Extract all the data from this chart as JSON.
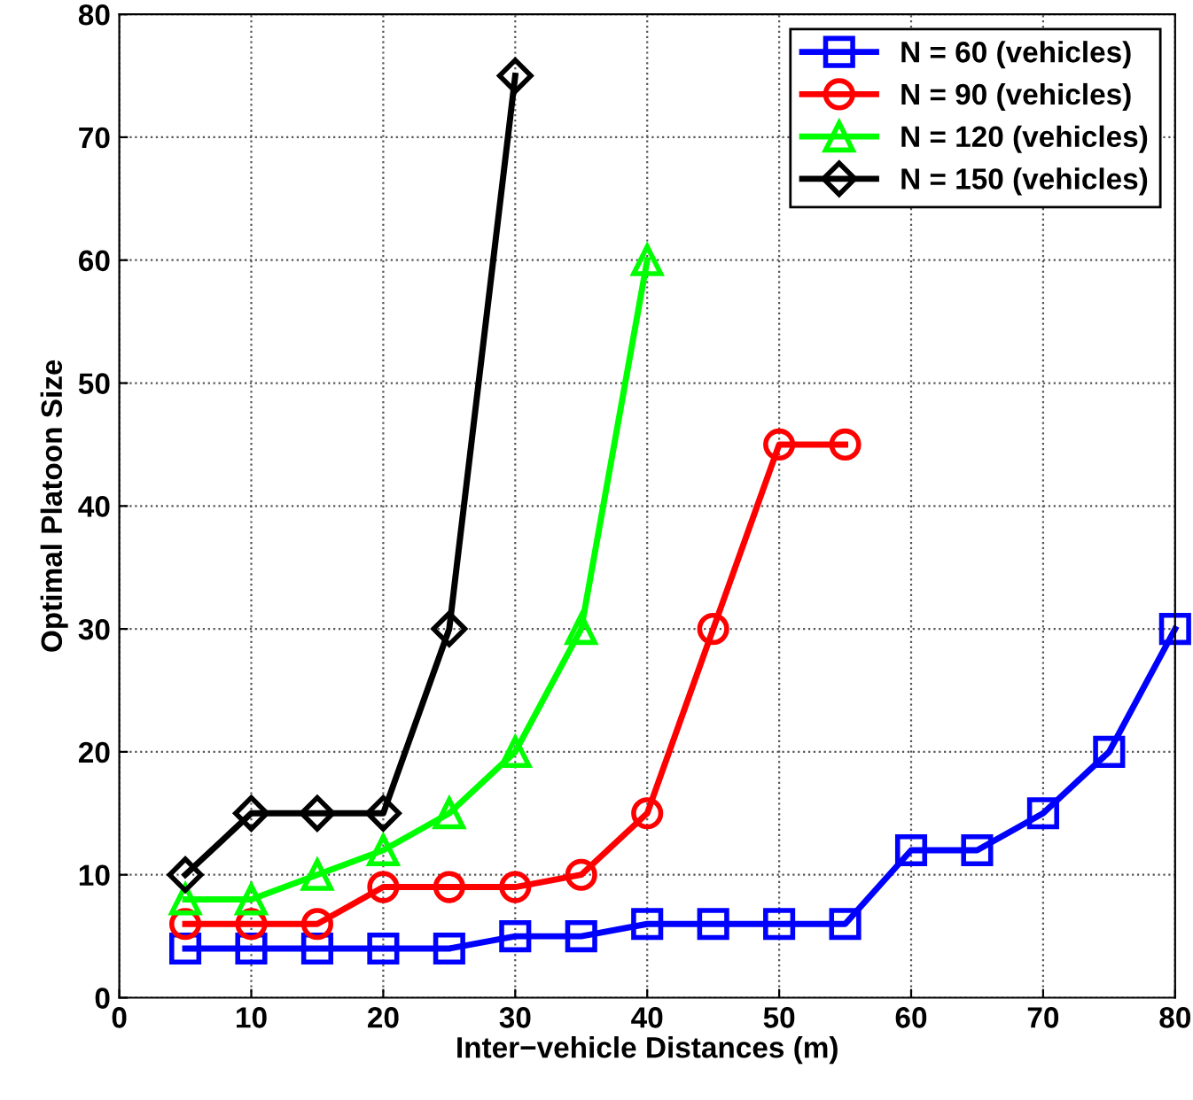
{
  "chart_data": {
    "type": "line",
    "xlabel": "Inter−vehicle Distances (m)",
    "ylabel": "Optimal Platoon Size",
    "xlim": [
      0,
      80
    ],
    "xticks": [
      0,
      10,
      20,
      30,
      40,
      50,
      60,
      70,
      80
    ],
    "ylim": [
      0,
      80
    ],
    "yticks": [
      0,
      10,
      20,
      30,
      40,
      50,
      60,
      70,
      80
    ],
    "grid": true,
    "legend": "top right",
    "line_style": "solid",
    "series": [
      {
        "name": "N = 60 (vehicles)",
        "color": "#0000ff",
        "marker": "square",
        "x": [
          5,
          10,
          15,
          20,
          25,
          30,
          35,
          40,
          45,
          50,
          55,
          60,
          65,
          70,
          75,
          80
        ],
        "values": [
          4,
          4,
          4,
          4,
          4,
          5,
          5,
          6,
          6,
          6,
          6,
          12,
          12,
          15,
          20,
          30
        ]
      },
      {
        "name": "N = 90 (vehicles)",
        "color": "#ff0000",
        "marker": "circle",
        "x": [
          5,
          10,
          15,
          20,
          25,
          30,
          35,
          40,
          45,
          50,
          55
        ],
        "values": [
          6,
          6,
          6,
          9,
          9,
          9,
          10,
          15,
          30,
          45,
          45
        ]
      },
      {
        "name": "N = 120 (vehicles)",
        "color": "#00ff00",
        "marker": "triangle",
        "x": [
          5,
          10,
          15,
          20,
          25,
          30,
          35,
          40
        ],
        "values": [
          8,
          8,
          10,
          12,
          15,
          20,
          30,
          60
        ]
      },
      {
        "name": "N = 150 (vehicles)",
        "color": "#000000",
        "marker": "diamond",
        "x": [
          5,
          10,
          15,
          20,
          25,
          30
        ],
        "values": [
          10,
          15,
          15,
          15,
          30,
          75
        ]
      }
    ]
  }
}
